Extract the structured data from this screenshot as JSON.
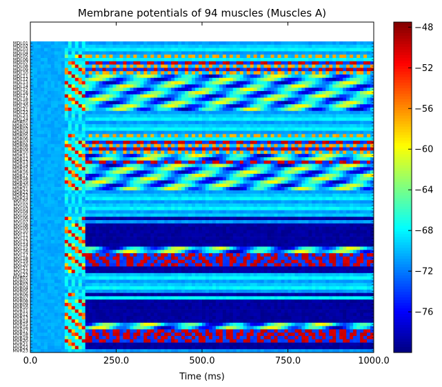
{
  "chart_data": {
    "type": "heatmap",
    "title": "Membrane potentials of 94 muscles (Muscles A)",
    "xlabel": "Time (ms)",
    "ylabel": "",
    "xlim": [
      0,
      1000
    ],
    "x_ticks": [
      0,
      250,
      500,
      750,
      1000
    ],
    "x_tick_labels": [
      "0.0",
      "250.0",
      "500.0",
      "750.0",
      "1000.0"
    ],
    "colorbar": {
      "colormap": "jet",
      "range": [
        -80,
        -47.5
      ],
      "ticks": [
        -48,
        -52,
        -56,
        -60,
        -64,
        -68,
        -72,
        -76
      ],
      "tick_labels": [
        "−48",
        "−52",
        "−56",
        "−60",
        "−64",
        "−68",
        "−72",
        "−76"
      ]
    },
    "row_labels": [
      "MDL01",
      "MDL02",
      "MDL03",
      "MDL04",
      "MDL05",
      "MDL06",
      "MDL07",
      "MDL08",
      "MDL09",
      "MDL10",
      "MDL11",
      "MDL12",
      "MDL13",
      "MDL14",
      "MDL15",
      "MDL16",
      "MDL17",
      "MDL18",
      "MDL19",
      "MDL20",
      "MDL21",
      "MDL22",
      "MDL23",
      "MDL24",
      "MDR01",
      "MDR02",
      "MDR03",
      "MDR04",
      "MDR05",
      "MDR06",
      "MDR07",
      "MDR08",
      "MDR09",
      "MDR10",
      "MDR11",
      "MDR12",
      "MDR13",
      "MDR14",
      "MDR15",
      "MDR16",
      "MDR17",
      "MDR18",
      "MDR19",
      "MDR20",
      "MDR21",
      "MDR22",
      "MDR23",
      "MDR24",
      "MVL01",
      "MVL02",
      "MVL03",
      "MVL04",
      "MVL05",
      "MVL06",
      "MVL07",
      "MVL08",
      "MVL09",
      "MVL10",
      "MVL11",
      "MVL12",
      "MVL13",
      "MVL14",
      "MVL15",
      "MVL16",
      "MVL17",
      "MVL18",
      "MVL19",
      "MVL20",
      "MVL21",
      "MVL22",
      "MVL23",
      "MVR01",
      "MVR02",
      "MVR03",
      "MVR04",
      "MVR05",
      "MVR06",
      "MVR07",
      "MVR08",
      "MVR09",
      "MVR10",
      "MVR11",
      "MVR12",
      "MVR13",
      "MVR14",
      "MVR15",
      "MVR16",
      "MVR17",
      "MVR18",
      "MVR19",
      "MVR20",
      "MVR21",
      "MVR22",
      "MVR23"
    ],
    "row_patterns": [
      "rest",
      "rest",
      "rest",
      "rest",
      "osc",
      "rest",
      "burst",
      "osc",
      "burst",
      "osc",
      "active",
      "active",
      "active",
      "active",
      "active",
      "active",
      "active",
      "active",
      "active",
      "active",
      "active",
      "rest",
      "rest",
      "rest",
      "rest",
      "rest",
      "rest",
      "rest",
      "osc",
      "rest",
      "burst",
      "osc",
      "burst",
      "osc",
      "active",
      "active",
      "burst",
      "active",
      "active",
      "active",
      "active",
      "active",
      "active",
      "active",
      "active",
      "rest",
      "rest",
      "rest",
      "rest",
      "rest",
      "rest",
      "rest",
      "rest",
      "hyper",
      "rest",
      "hyper",
      "hyper",
      "hyper",
      "hyper",
      "hyper",
      "hyper",
      "hyper",
      "active",
      "active",
      "burst",
      "burst",
      "burst",
      "burst",
      "hyper",
      "hyper",
      "rest",
      "rest",
      "rest",
      "rest",
      "rest",
      "rest",
      "hyper",
      "rest",
      "hyper",
      "hyper",
      "hyper",
      "hyper",
      "hyper",
      "hyper",
      "hyper",
      "active",
      "active",
      "burst",
      "burst",
      "burst",
      "burst",
      "hyper",
      "hyper",
      "rest"
    ]
  }
}
